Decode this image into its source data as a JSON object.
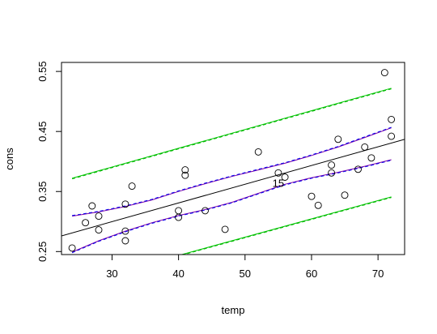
{
  "chart_data": {
    "type": "scatter",
    "xlabel": "temp",
    "ylabel": "cons",
    "xlim": [
      22.4,
      74
    ],
    "ylim": [
      0.245,
      0.565
    ],
    "x_ticks": [
      30,
      40,
      50,
      60,
      70
    ],
    "y_ticks": [
      0.25,
      0.35,
      0.45,
      0.55
    ],
    "x_tick_labels": [
      "30",
      "40",
      "50",
      "60",
      "70"
    ],
    "y_tick_labels": [
      "0.25",
      "0.35",
      "0.45",
      "0.55"
    ],
    "grid": false,
    "points": [
      {
        "x": 24,
        "y": 0.256
      },
      {
        "x": 26,
        "y": 0.298
      },
      {
        "x": 27,
        "y": 0.326
      },
      {
        "x": 28,
        "y": 0.309
      },
      {
        "x": 28,
        "y": 0.286
      },
      {
        "x": 32,
        "y": 0.329
      },
      {
        "x": 32,
        "y": 0.284
      },
      {
        "x": 32,
        "y": 0.268
      },
      {
        "x": 33,
        "y": 0.359
      },
      {
        "x": 40,
        "y": 0.318
      },
      {
        "x": 40,
        "y": 0.307
      },
      {
        "x": 41,
        "y": 0.386
      },
      {
        "x": 41,
        "y": 0.377
      },
      {
        "x": 44,
        "y": 0.318
      },
      {
        "x": 47,
        "y": 0.287
      },
      {
        "x": 52,
        "y": 0.416
      },
      {
        "x": 55,
        "y": 0.381
      },
      {
        "x": 56,
        "y": 0.374
      },
      {
        "x": 60,
        "y": 0.342
      },
      {
        "x": 61,
        "y": 0.327
      },
      {
        "x": 63,
        "y": 0.394
      },
      {
        "x": 63,
        "y": 0.381
      },
      {
        "x": 64,
        "y": 0.437
      },
      {
        "x": 65,
        "y": 0.344
      },
      {
        "x": 67,
        "y": 0.387
      },
      {
        "x": 68,
        "y": 0.424
      },
      {
        "x": 69,
        "y": 0.406
      },
      {
        "x": 71,
        "y": 0.548
      },
      {
        "x": 72,
        "y": 0.47
      },
      {
        "x": 72,
        "y": 0.442
      }
    ],
    "point_label": {
      "text": "15",
      "x": 55,
      "y": 0.362
    },
    "lines": [
      {
        "name": "fit",
        "color": "#000000",
        "dash": "solid",
        "x": [
          22.4,
          74
        ],
        "y": [
          0.276,
          0.437
        ]
      },
      {
        "name": "ci-lower",
        "color": "#7a00a8",
        "dash": "solid",
        "x": [
          24,
          28,
          32,
          36,
          40,
          44,
          48,
          52,
          56,
          60,
          64,
          68,
          72
        ],
        "y": [
          0.249,
          0.268,
          0.284,
          0.298,
          0.31,
          0.32,
          0.332,
          0.347,
          0.362,
          0.373,
          0.382,
          0.392,
          0.403
        ]
      },
      {
        "name": "ci-lower-dashed",
        "color": "#0000ee",
        "dash": "dashed",
        "x": [
          24,
          28,
          32,
          36,
          40,
          44,
          48,
          52,
          56,
          60,
          64,
          68,
          72
        ],
        "y": [
          0.248,
          0.267,
          0.283,
          0.297,
          0.309,
          0.319,
          0.331,
          0.346,
          0.361,
          0.372,
          0.381,
          0.391,
          0.402
        ]
      },
      {
        "name": "ci-upper",
        "color": "#7a00a8",
        "dash": "solid",
        "x": [
          24,
          28,
          32,
          36,
          40,
          44,
          48,
          52,
          56,
          60,
          64,
          68,
          72
        ],
        "y": [
          0.309,
          0.316,
          0.325,
          0.336,
          0.35,
          0.363,
          0.375,
          0.386,
          0.397,
          0.41,
          0.424,
          0.44,
          0.456
        ]
      },
      {
        "name": "ci-upper-dashed",
        "color": "#0000ee",
        "dash": "dashed",
        "x": [
          24,
          28,
          32,
          36,
          40,
          44,
          48,
          52,
          56,
          60,
          64,
          68,
          72
        ],
        "y": [
          0.31,
          0.317,
          0.326,
          0.337,
          0.351,
          0.364,
          0.376,
          0.387,
          0.398,
          0.411,
          0.425,
          0.441,
          0.457
        ]
      },
      {
        "name": "pred-upper",
        "color": "#00c800",
        "dash": "solid",
        "x": [
          24,
          72
        ],
        "y": [
          0.372,
          0.522
        ]
      },
      {
        "name": "pred-upper-dashed",
        "color": "#00b400",
        "dash": "dashed",
        "x": [
          24,
          72
        ],
        "y": [
          0.371,
          0.521
        ]
      },
      {
        "name": "pred-lower",
        "color": "#00c800",
        "dash": "solid",
        "x": [
          40.5,
          72
        ],
        "y": [
          0.245,
          0.341
        ]
      },
      {
        "name": "pred-lower-dashed",
        "color": "#00b400",
        "dash": "dashed",
        "x": [
          40.5,
          72
        ],
        "y": [
          0.244,
          0.34
        ]
      }
    ]
  }
}
